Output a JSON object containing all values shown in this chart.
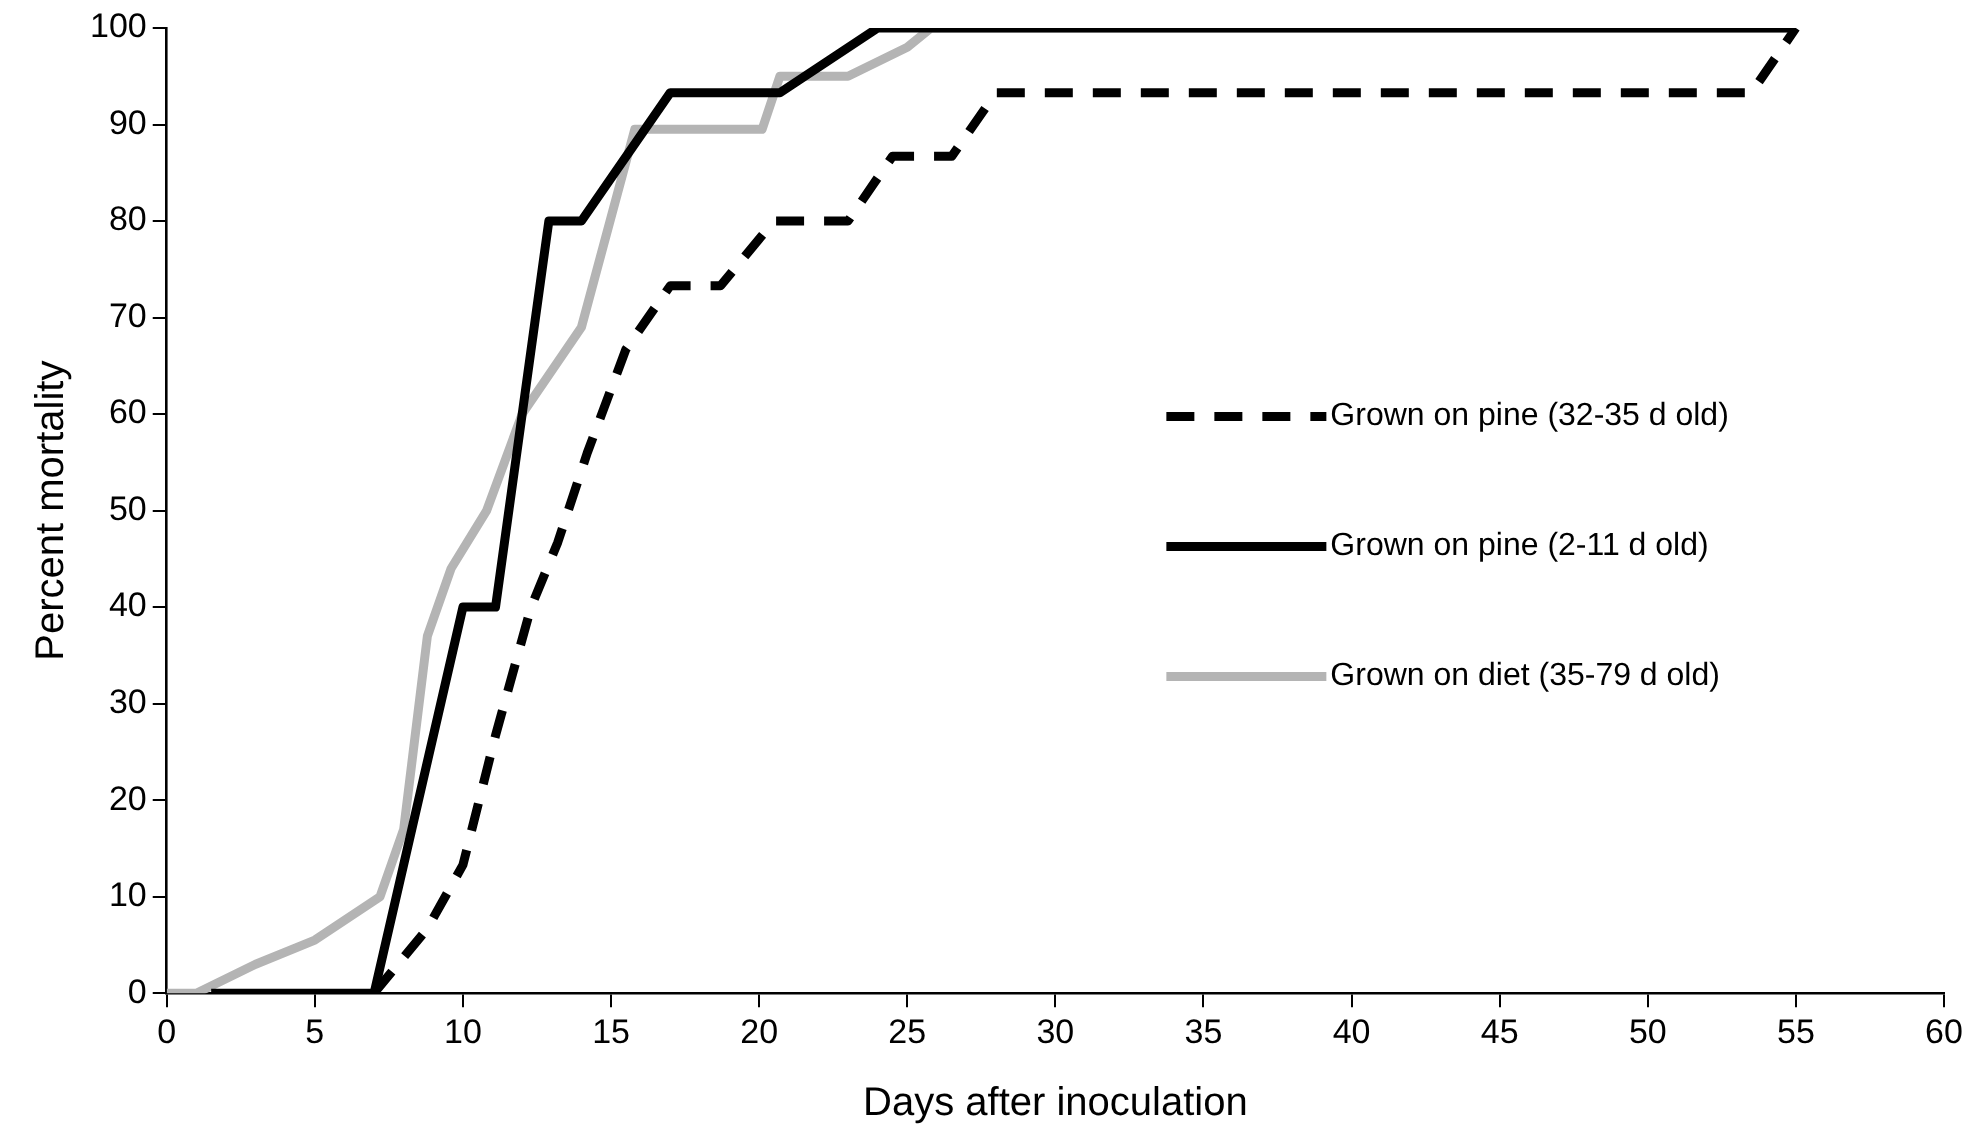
{
  "chart_data": {
    "type": "line",
    "xlabel": "Days after inoculation",
    "ylabel": "Percent mortality",
    "xlim": [
      0,
      60
    ],
    "xticks": [
      0,
      5,
      10,
      15,
      20,
      25,
      30,
      35,
      40,
      45,
      50,
      55,
      60
    ],
    "ylim": [
      0,
      100
    ],
    "yticks": [
      0,
      10,
      20,
      30,
      40,
      50,
      60,
      70,
      80,
      90,
      100
    ],
    "grid": false,
    "legend": "right",
    "marker": "none",
    "series": [
      {
        "name": "Grown on pine (32-35 d old)",
        "color": "#000000",
        "line_style": "dashed",
        "x": [
          7,
          8.8,
          10,
          11.1,
          12.3,
          13.2,
          14.2,
          15.5,
          17,
          18.7,
          20.5,
          23,
          24.5,
          26.5,
          28,
          53.5,
          55
        ],
        "values": [
          0,
          6.7,
          13.3,
          26.7,
          40,
          46.7,
          56,
          66.7,
          73.3,
          73.3,
          80,
          80,
          86.7,
          86.7,
          93.3,
          93.3,
          100
        ]
      },
      {
        "name": "Grown on pine (2-11 d old)",
        "color": "#000000",
        "line_style": "solid",
        "x": [
          1.5,
          7,
          10,
          11.1,
          12.9,
          14,
          17,
          20.7,
          24,
          55
        ],
        "values": [
          0,
          0,
          40,
          40,
          80,
          80,
          93.3,
          93.3,
          100,
          100
        ]
      },
      {
        "name": "Grown on diet (35-79 d old)",
        "color": "#b4b4b4",
        "line_style": "solid",
        "x": [
          0,
          1,
          3,
          5,
          7.2,
          8,
          8.8,
          9.6,
          10.8,
          12,
          14,
          15.8,
          20.1,
          20.7,
          23,
          25,
          25.8,
          55
        ],
        "values": [
          0,
          0,
          3,
          5.5,
          10,
          17,
          37,
          44,
          50,
          60,
          69,
          89.5,
          89.5,
          95,
          95,
          98,
          100,
          100
        ]
      }
    ]
  }
}
